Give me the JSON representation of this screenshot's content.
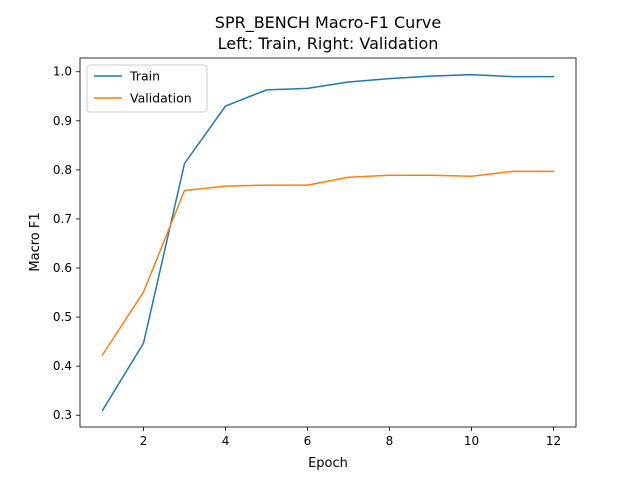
{
  "chart_data": {
    "type": "line",
    "title": "SPR_BENCH Macro-F1 Curve",
    "subtitle": "Left: Train, Right: Validation",
    "xlabel": "Epoch",
    "ylabel": "Macro F1",
    "xlim": [
      0.45,
      12.55
    ],
    "ylim": [
      0.276,
      1.028
    ],
    "x_ticks": [
      2,
      4,
      6,
      8,
      10,
      12
    ],
    "y_ticks": [
      0.3,
      0.4,
      0.5,
      0.6,
      0.7,
      0.8,
      0.9,
      1.0
    ],
    "grid": false,
    "legend_position": "top-left",
    "x": [
      1,
      2,
      3,
      4,
      5,
      6,
      7,
      8,
      9,
      10,
      11,
      12
    ],
    "series": [
      {
        "name": "Train",
        "color": "#1f77b4",
        "values": [
          0.31,
          0.447,
          0.813,
          0.93,
          0.963,
          0.966,
          0.979,
          0.986,
          0.991,
          0.994,
          0.99,
          0.99
        ]
      },
      {
        "name": "Validation",
        "color": "#ff7f0e",
        "values": [
          0.423,
          0.551,
          0.758,
          0.767,
          0.769,
          0.769,
          0.785,
          0.789,
          0.789,
          0.787,
          0.797,
          0.797
        ]
      }
    ]
  }
}
